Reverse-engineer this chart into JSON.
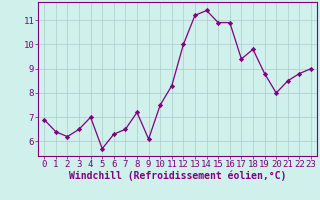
{
  "x": [
    0,
    1,
    2,
    3,
    4,
    5,
    6,
    7,
    8,
    9,
    10,
    11,
    12,
    13,
    14,
    15,
    16,
    17,
    18,
    19,
    20,
    21,
    22,
    23
  ],
  "y": [
    6.9,
    6.4,
    6.2,
    6.5,
    7.0,
    5.7,
    6.3,
    6.5,
    7.2,
    6.1,
    7.5,
    8.3,
    10.0,
    11.2,
    11.4,
    10.9,
    10.9,
    9.4,
    9.8,
    8.8,
    8.0,
    8.5,
    8.8,
    9.0
  ],
  "line_color": "#800080",
  "marker": "D",
  "marker_size": 2.2,
  "bg_color": "#cff0eb",
  "grid_color": "#aacccc",
  "xlabel": "Windchill (Refroidissement éolien,°C)",
  "xlim": [
    -0.5,
    23.5
  ],
  "ylim": [
    5.4,
    11.75
  ],
  "yticks": [
    6,
    7,
    8,
    9,
    10,
    11
  ],
  "xticks": [
    0,
    1,
    2,
    3,
    4,
    5,
    6,
    7,
    8,
    9,
    10,
    11,
    12,
    13,
    14,
    15,
    16,
    17,
    18,
    19,
    20,
    21,
    22,
    23
  ],
  "tick_label_fontsize": 6.5,
  "xlabel_fontsize": 7,
  "axis_color": "#800080",
  "spine_color": "#800080"
}
